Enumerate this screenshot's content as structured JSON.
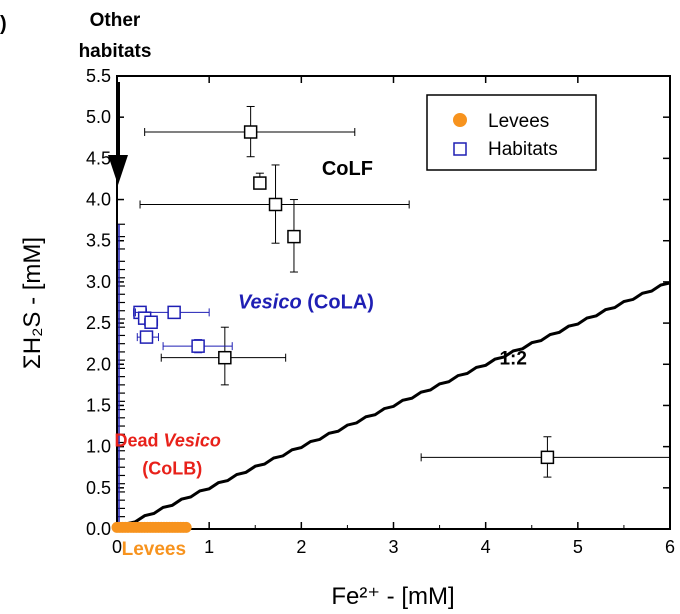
{
  "chart_data": {
    "type": "scatter",
    "panel_label": ")",
    "top_label": [
      "Other",
      "habitats"
    ],
    "xlabel": "Fe²⁺ - [mM]",
    "ylabel": "ΣH₂S - [mM]",
    "xlim": [
      0,
      6
    ],
    "ylim": [
      0,
      5.5
    ],
    "xticks": [
      "0",
      "1",
      "2",
      "3",
      "4",
      "5",
      "6"
    ],
    "yticks": [
      "0.0",
      "0.5",
      "1.0",
      "1.5",
      "2.0",
      "2.5",
      "3.0",
      "3.5",
      "4.0",
      "4.5",
      "5.0",
      "5.5"
    ],
    "legend": {
      "placement": "top-right",
      "entries": [
        {
          "label": "Levees",
          "marker": "filled-circle",
          "color": "#f7931e"
        },
        {
          "label": "Habitats",
          "marker": "open-square",
          "color": "#1f1fb4"
        }
      ]
    },
    "reference_line": {
      "label": "1:2",
      "slope": 0.5,
      "x": [
        0,
        6
      ],
      "y": [
        0,
        3
      ]
    },
    "annotations": [
      {
        "text": "CoLF",
        "color": "#000000",
        "italic_part": "",
        "rest": "CoLF",
        "x": 2.5,
        "y": 4.3
      },
      {
        "text_italic": "Vesico",
        "text_rest": " (CoLA)",
        "color": "#1f1fb4",
        "x": 2.05,
        "y": 2.68
      },
      {
        "text_line1_plain": "Dead ",
        "text_line1_italic": "Vesico",
        "text_line2": "(CoLB)",
        "color": "#e8211a",
        "x": 0.55,
        "y": 1.0
      },
      {
        "text": "Levees",
        "color": "#f7931e",
        "x": 0.4,
        "y": -0.12
      }
    ],
    "series": [
      {
        "name": "CoLF",
        "color": "#000000",
        "points": [
          {
            "x": 1.45,
            "y": 4.82,
            "xerr": [
              0.3,
              2.58
            ],
            "yerr": [
              4.52,
              5.13
            ]
          },
          {
            "x": 1.55,
            "y": 4.2,
            "xerr": [
              1.5,
              1.6
            ],
            "yerr": [
              4.13,
              4.32
            ]
          },
          {
            "x": 1.72,
            "y": 3.94,
            "xerr": [
              0.25,
              3.17
            ],
            "yerr": [
              3.47,
              4.42
            ]
          },
          {
            "x": 1.92,
            "y": 3.55,
            "xerr": [
              1.86,
              1.98
            ],
            "yerr": [
              3.12,
              4.0
            ]
          },
          {
            "x": 1.17,
            "y": 2.08,
            "xerr": [
              0.48,
              1.83
            ],
            "yerr": [
              1.75,
              2.45
            ]
          },
          {
            "x": 4.67,
            "y": 0.87,
            "xerr": [
              3.3,
              6.0
            ],
            "yerr": [
              0.63,
              1.12
            ]
          }
        ]
      },
      {
        "name": "CoLA",
        "color": "#1f1fb4",
        "points": [
          {
            "x": 0.25,
            "y": 2.63,
            "xerr": [
              0.18,
              0.32
            ],
            "yerr": [
              2.6,
              2.66
            ]
          },
          {
            "x": 0.3,
            "y": 2.56,
            "xerr": [
              0.25,
              0.35
            ],
            "yerr": [
              2.53,
              2.6
            ]
          },
          {
            "x": 0.37,
            "y": 2.51,
            "xerr": [
              0.3,
              0.44
            ],
            "yerr": [
              2.47,
              2.55
            ]
          },
          {
            "x": 0.62,
            "y": 2.63,
            "xerr": [
              0.2,
              1.0
            ],
            "yerr": [
              2.6,
              2.66
            ]
          },
          {
            "x": 0.32,
            "y": 2.33,
            "xerr": [
              0.22,
              0.45
            ],
            "yerr": [
              2.27,
              2.4
            ]
          },
          {
            "x": 0.88,
            "y": 2.22,
            "xerr": [
              0.5,
              1.25
            ],
            "yerr": [
              2.14,
              2.3
            ]
          }
        ]
      },
      {
        "name": "Levees",
        "color": "#f7931e",
        "x_range": [
          0.0,
          0.75
        ],
        "y": 0.02,
        "count": 26
      },
      {
        "name": "Other habitats",
        "color": "#000000",
        "x": 0.02,
        "y_values": [
          0.05,
          0.15,
          0.25,
          0.35,
          0.45,
          0.55,
          0.65,
          0.75,
          0.85,
          0.95,
          1.05,
          1.15,
          1.25,
          1.35,
          1.45,
          1.55,
          1.65,
          1.75,
          1.85,
          1.95,
          2.05,
          2.15,
          2.25,
          2.35,
          2.45,
          2.55,
          2.65,
          2.75,
          2.85,
          2.95,
          3.05,
          3.15,
          3.25,
          3.4,
          3.55,
          3.7
        ]
      }
    ]
  }
}
